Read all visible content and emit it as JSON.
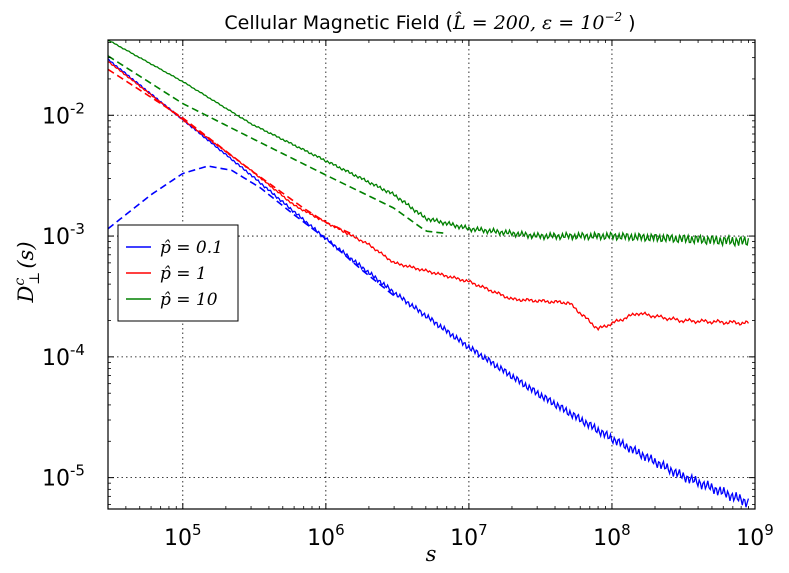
{
  "chart_data": {
    "type": "line",
    "title_prefix": "Cellular Magnetic Field (",
    "title_math": "L̂ = 200,  ε = 10",
    "title_exp": "−2",
    "title_suffix": " )",
    "xlabel": "s",
    "ylabel": "D",
    "ylabel_sup": "c",
    "ylabel_sub": "⊥",
    "ylabel_arg": "(s)",
    "x_scale": "log",
    "y_scale": "log",
    "xlim": [
      30000,
      1000000000
    ],
    "ylim": [
      5.5e-06,
      0.042
    ],
    "grid": true,
    "legend_position": "center-left",
    "x_ticks": [
      {
        "value": 100000,
        "base": "10",
        "exp": "5"
      },
      {
        "value": 1000000,
        "base": "10",
        "exp": "6"
      },
      {
        "value": 10000000,
        "base": "10",
        "exp": "7"
      },
      {
        "value": 100000000,
        "base": "10",
        "exp": "8"
      },
      {
        "value": 1000000000,
        "base": "10",
        "exp": "9"
      }
    ],
    "y_ticks": [
      {
        "value": 1e-05,
        "base": "10",
        "exp": "-5"
      },
      {
        "value": 0.0001,
        "base": "10",
        "exp": "-4"
      },
      {
        "value": 0.001,
        "base": "10",
        "exp": "-3"
      },
      {
        "value": 0.01,
        "base": "10",
        "exp": "-2"
      }
    ],
    "series": [
      {
        "name": "p̂ = 0.1",
        "color": "#0000ff",
        "solid": [
          [
            30000,
            0.029
          ],
          [
            100000,
            0.0092
          ],
          [
            300000,
            0.0032
          ],
          [
            1000000,
            0.00095
          ],
          [
            3000000,
            0.00034
          ],
          [
            10000000,
            0.00012
          ],
          [
            30000000,
            5e-05
          ],
          [
            100000000,
            2.1e-05
          ],
          [
            300000000,
            1.05e-05
          ],
          [
            900000000,
            6.2e-06
          ]
        ],
        "dashed": [
          [
            30000,
            0.00115
          ],
          [
            60000,
            0.0022
          ],
          [
            100000,
            0.0033
          ],
          [
            150000,
            0.0038
          ],
          [
            220000,
            0.0035
          ],
          [
            350000,
            0.0025
          ],
          [
            600000,
            0.0015
          ],
          [
            1000000,
            0.00095
          ],
          [
            1800000,
            0.00052
          ],
          [
            3000000,
            0.00032
          ]
        ]
      },
      {
        "name": "p̂ = 1",
        "color": "#ff0000",
        "solid": [
          [
            30000,
            0.028
          ],
          [
            100000,
            0.0092
          ],
          [
            300000,
            0.0035
          ],
          [
            600000,
            0.0018
          ],
          [
            1000000,
            0.0013
          ],
          [
            2000000,
            0.00085
          ],
          [
            3000000,
            0.0006
          ],
          [
            10000000,
            0.00042
          ],
          [
            20000000,
            0.0003
          ],
          [
            50000000,
            0.00028
          ],
          [
            80000000,
            0.00017
          ],
          [
            150000000,
            0.00023
          ],
          [
            300000000,
            0.0002
          ],
          [
            900000000,
            0.00019
          ]
        ],
        "dashed": [
          [
            30000,
            0.024
          ],
          [
            100000,
            0.0095
          ],
          [
            300000,
            0.0035
          ],
          [
            700000,
            0.0017
          ],
          [
            1000000,
            0.0013
          ],
          [
            1500000,
            0.00105
          ]
        ]
      },
      {
        "name": "p̂ = 10",
        "color": "#008000",
        "solid": [
          [
            30000,
            0.042
          ],
          [
            100000,
            0.019
          ],
          [
            300000,
            0.0085
          ],
          [
            1000000,
            0.0042
          ],
          [
            3000000,
            0.0022
          ],
          [
            5000000,
            0.0014
          ],
          [
            10000000,
            0.00115
          ],
          [
            30000000,
            0.001
          ],
          [
            100000000,
            0.001
          ],
          [
            300000000,
            0.00095
          ],
          [
            900000000,
            0.0009
          ]
        ],
        "dashed": [
          [
            30000,
            0.031
          ],
          [
            100000,
            0.0125
          ],
          [
            300000,
            0.0065
          ],
          [
            1000000,
            0.0032
          ],
          [
            3000000,
            0.0017
          ],
          [
            5000000,
            0.0011
          ],
          [
            7000000,
            0.00105
          ]
        ]
      }
    ]
  }
}
